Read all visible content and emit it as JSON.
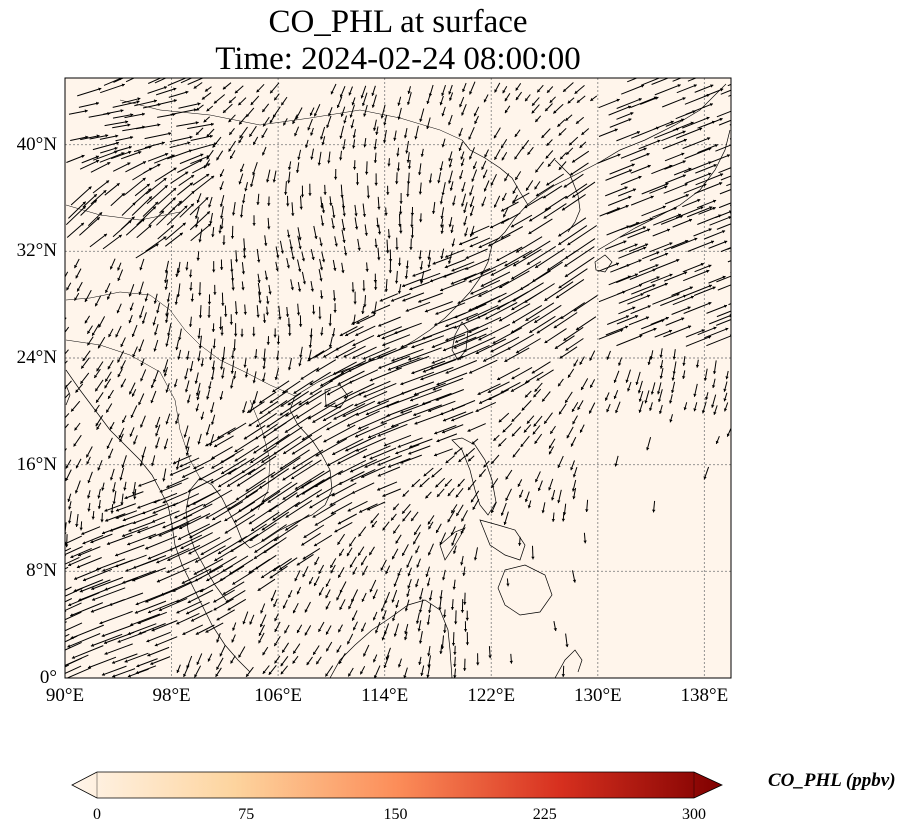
{
  "title": {
    "line1": "CO_PHL at surface",
    "line2": "Time: 2024-02-24 08:00:00"
  },
  "map": {
    "projection": "PlateCarree",
    "lon_range": [
      90,
      140
    ],
    "lat_range": [
      0,
      45
    ],
    "gridlines": "dotted",
    "background_value_color": "#fff5eb",
    "coastline_color": "#000000",
    "lon_ticks": [
      {
        "value": 90,
        "label": "90°E"
      },
      {
        "value": 98,
        "label": "98°E"
      },
      {
        "value": 106,
        "label": "106°E"
      },
      {
        "value": 114,
        "label": "114°E"
      },
      {
        "value": 122,
        "label": "122°E"
      },
      {
        "value": 130,
        "label": "130°E"
      },
      {
        "value": 138,
        "label": "138°E"
      }
    ],
    "lat_ticks": [
      {
        "value": 0,
        "label": "0°"
      },
      {
        "value": 8,
        "label": "8°N"
      },
      {
        "value": 16,
        "label": "16°N"
      },
      {
        "value": 24,
        "label": "24°N"
      },
      {
        "value": 32,
        "label": "32°N"
      },
      {
        "value": 40,
        "label": "40°N"
      }
    ],
    "overlay": "wind-vectors"
  },
  "colorbar": {
    "label": "CO_PHL (ppbv)",
    "colormap": "OrRd",
    "extend": "both",
    "range": [
      0,
      300
    ],
    "ticks": [
      {
        "value": 0,
        "label": "0"
      },
      {
        "value": 75,
        "label": "75"
      },
      {
        "value": 150,
        "label": "150"
      },
      {
        "value": 225,
        "label": "225"
      },
      {
        "value": 300,
        "label": "300"
      }
    ],
    "colors": [
      "#fff5eb",
      "#fdd49e",
      "#fc8d59",
      "#d7301f",
      "#7f0000"
    ]
  }
}
